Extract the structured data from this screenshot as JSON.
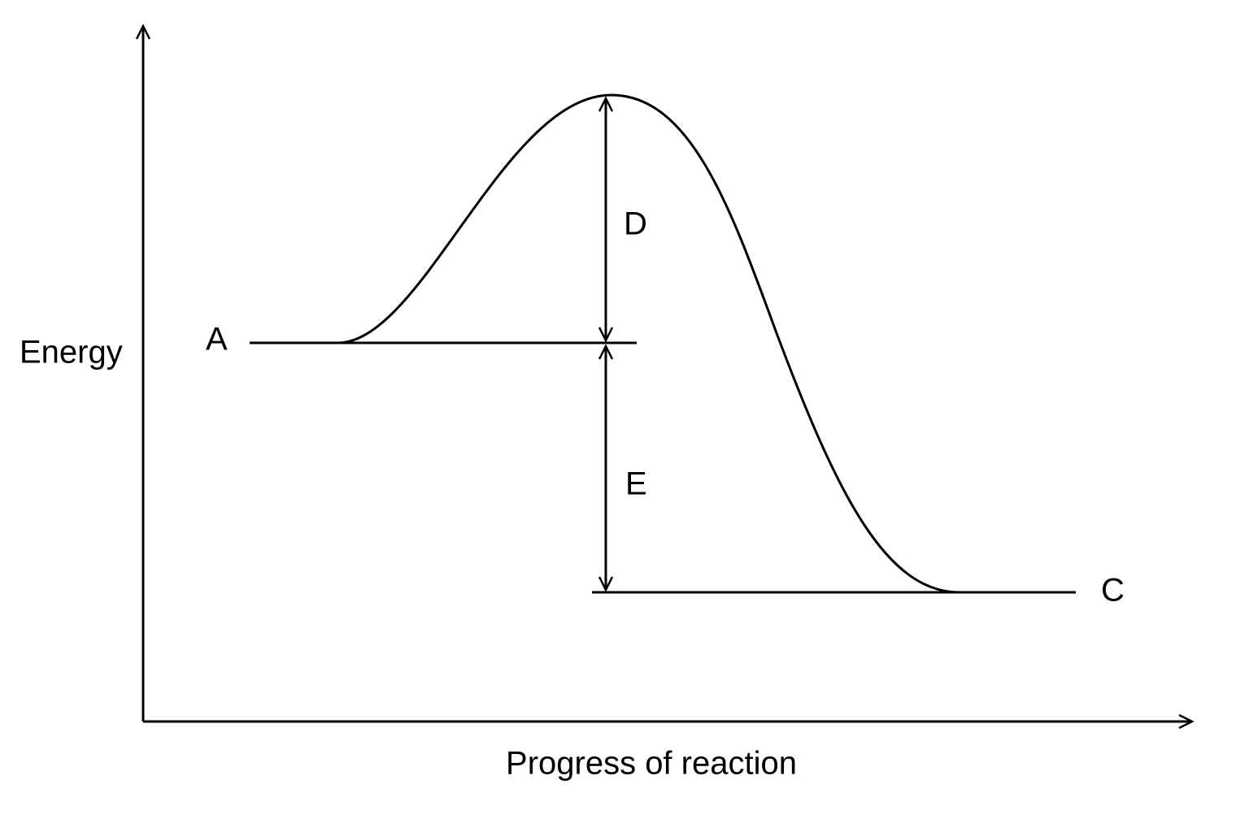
{
  "axes": {
    "y_label": "Energy",
    "x_label": "Progress of reaction"
  },
  "levels": {
    "start": "A",
    "end": "C"
  },
  "arrows": {
    "upper": "D",
    "lower": "E"
  }
}
